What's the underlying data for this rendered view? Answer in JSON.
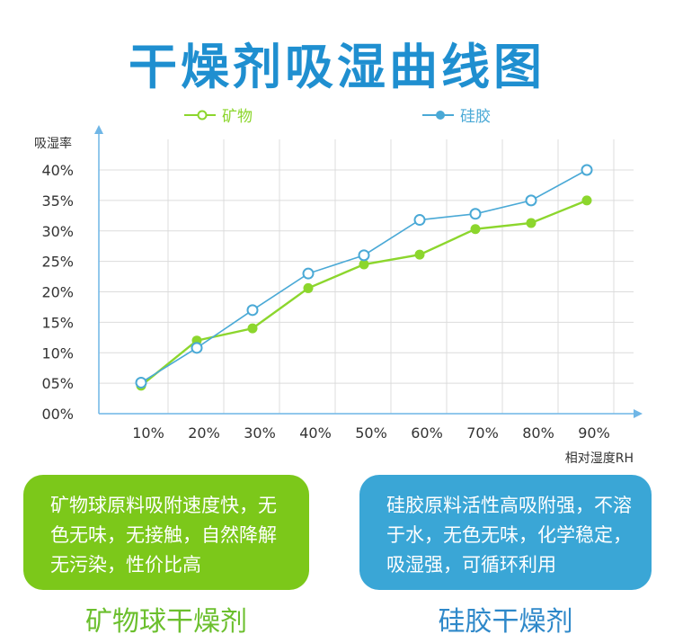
{
  "title": "干燥剂吸湿曲线图",
  "chart_data": {
    "type": "line",
    "xlabel": "相对湿度RH",
    "ylabel": "吸湿率",
    "categories": [
      "10%",
      "20%",
      "30%",
      "40%",
      "50%",
      "60%",
      "70%",
      "80%",
      "90%"
    ],
    "y_ticks": [
      "00%",
      "05%",
      "10%",
      "15%",
      "20%",
      "25%",
      "30%",
      "35%",
      "40%"
    ],
    "ylim": [
      0,
      40
    ],
    "grid": true,
    "legend_position": "top",
    "series": [
      {
        "name": "矿物",
        "color": "#8cd62d",
        "values": [
          4.6,
          12.0,
          14.0,
          20.6,
          24.5,
          26.1,
          30.3,
          31.3,
          35.0
        ]
      },
      {
        "name": "硅胶",
        "color": "#4aa9d6",
        "values": [
          5.1,
          10.8,
          17.0,
          23.0,
          26.0,
          31.8,
          32.8,
          35.0,
          40.0
        ]
      }
    ]
  },
  "boxes": {
    "mineral": "矿物球原料吸附速度快，无色无味，无接触，自然降解无污染，性价比高",
    "silica": "硅胶原料活性高吸附强，不溶于水，无色无味，化学稳定，吸湿强，可循环利用"
  },
  "captions": {
    "mineral": "矿物球干燥剂",
    "silica": "硅胶干燥剂"
  }
}
